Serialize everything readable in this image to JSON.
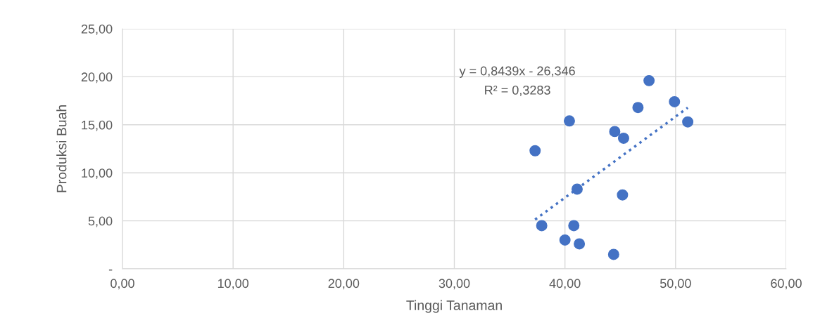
{
  "chart_data": {
    "type": "scatter",
    "xlabel": "Tinggi Tanaman",
    "ylabel": "Produksi Buah",
    "series": [
      {
        "color": "#4472c4",
        "marker": "circle",
        "x": [
          37.3,
          37.9,
          40.4,
          40.0,
          40.8,
          41.1,
          41.3,
          44.4,
          44.5,
          45.2,
          45.3,
          46.6,
          47.6,
          49.9,
          51.1
        ],
        "values": [
          12.3,
          4.5,
          15.4,
          3.0,
          4.5,
          8.3,
          2.6,
          1.5,
          14.3,
          7.7,
          13.6,
          16.8,
          19.6,
          17.4,
          15.3
        ]
      },
      {
        "type": "line",
        "color": "#4472c4",
        "line_style": "dotted",
        "x": [
          37.3,
          51.1
        ],
        "values": [
          5.13,
          16.78
        ]
      }
    ],
    "annotations": [
      "y = 0,8439x - 26,346",
      "R² = 0,3283"
    ],
    "xlim": [
      0,
      60
    ],
    "ylim": [
      0,
      25
    ],
    "xticks": [
      {
        "value": 0,
        "label": "0,00"
      },
      {
        "value": 10,
        "label": "10,00"
      },
      {
        "value": 20,
        "label": "20,00"
      },
      {
        "value": 30,
        "label": "30,00"
      },
      {
        "value": 40,
        "label": "40,00"
      },
      {
        "value": 50,
        "label": "50,00"
      },
      {
        "value": 60,
        "label": "60,00"
      }
    ],
    "yticks": [
      {
        "value": 0,
        "label": "-"
      },
      {
        "value": 5,
        "label": "5,00"
      },
      {
        "value": 10,
        "label": "10,00"
      },
      {
        "value": 15,
        "label": "15,00"
      },
      {
        "value": 20,
        "label": "20,00"
      },
      {
        "value": 25,
        "label": "25,00"
      }
    ],
    "grid": true,
    "legend": false
  }
}
